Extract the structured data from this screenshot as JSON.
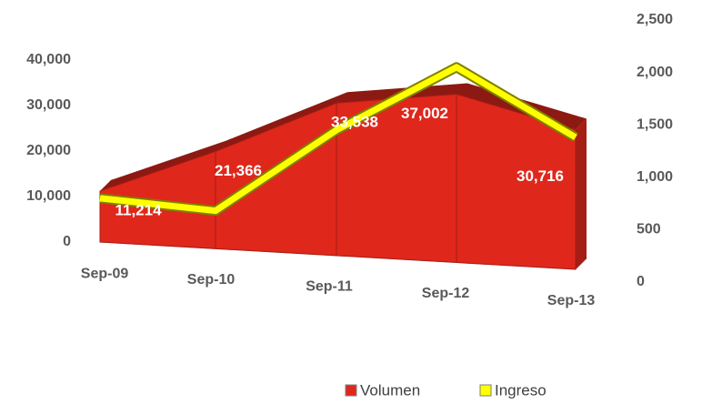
{
  "chart_data": {
    "type": "area_line",
    "categories": [
      "Sep-09",
      "Sep-10",
      "Sep-11",
      "Sep-12",
      "Sep-13"
    ],
    "series": [
      {
        "name": "Volumen",
        "color": "#e0271b",
        "values": [
          11214,
          21366,
          33538,
          37002,
          30716
        ],
        "value_labels": [
          "11,214",
          "21,366",
          "33,538",
          "37,002",
          "30,716"
        ]
      },
      {
        "name": "Ingreso",
        "color": "#ffff00",
        "axis": "y2",
        "values": [
          800,
          680,
          1450,
          2050,
          1380
        ]
      }
    ],
    "ylim": [
      0,
      40000
    ],
    "yticks": [
      0,
      {
        "value": 10000,
        "label": "10,000"
      },
      {
        "value": 20000,
        "label": "20,000"
      },
      {
        "value": 30000,
        "label": "30,000"
      },
      {
        "value": 40000,
        "label": "40,000"
      }
    ],
    "y2lim": [
      0,
      2500
    ],
    "y2ticks": [
      0,
      500,
      {
        "value": 1000,
        "label": "1,000"
      },
      {
        "value": 1500,
        "label": "1,500"
      },
      {
        "value": 2000,
        "label": "2,000"
      },
      {
        "value": 2500,
        "label": "2,500"
      }
    ],
    "grid": false,
    "legend": "bottom"
  }
}
